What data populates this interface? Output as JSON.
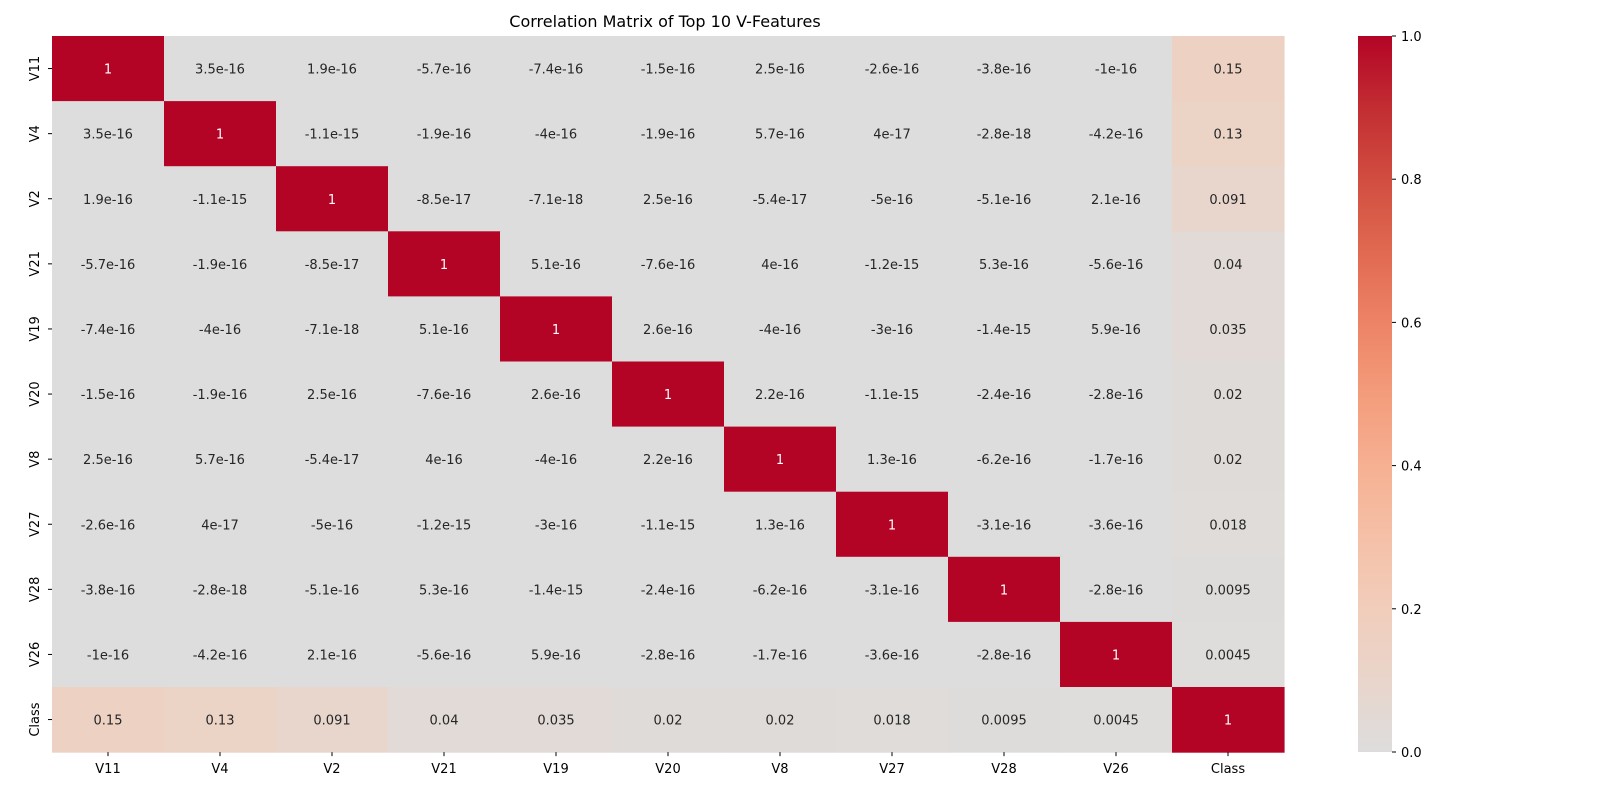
{
  "chart_data": {
    "type": "heatmap",
    "title": "Correlation Matrix of Top 10 V-Features",
    "xlabel": "",
    "ylabel": "",
    "rows": [
      "V11",
      "V4",
      "V2",
      "V21",
      "V19",
      "V20",
      "V8",
      "V27",
      "V28",
      "V26",
      "Class"
    ],
    "columns": [
      "V11",
      "V4",
      "V2",
      "V21",
      "V19",
      "V20",
      "V8",
      "V27",
      "V28",
      "V26",
      "Class"
    ],
    "values": [
      [
        1,
        3.5e-16,
        1.9e-16,
        -5.7e-16,
        -7.4e-16,
        -1.5e-16,
        2.5e-16,
        -2.6e-16,
        -3.8e-16,
        -1e-16,
        0.15
      ],
      [
        3.5e-16,
        1,
        -1.1e-15,
        -1.9e-16,
        -4e-16,
        -1.9e-16,
        5.7e-16,
        4e-17,
        -2.8e-18,
        -4.2e-16,
        0.13
      ],
      [
        1.9e-16,
        -1.1e-15,
        1,
        -8.5e-17,
        -7.1e-18,
        2.5e-16,
        -5.4e-17,
        -5e-16,
        -5.1e-16,
        2.1e-16,
        0.091
      ],
      [
        -5.7e-16,
        -1.9e-16,
        -8.5e-17,
        1,
        5.1e-16,
        -7.6e-16,
        4e-16,
        -1.2e-15,
        5.3e-16,
        -5.6e-16,
        0.04
      ],
      [
        -7.4e-16,
        -4e-16,
        -7.1e-18,
        5.1e-16,
        1,
        2.6e-16,
        -4e-16,
        -3e-16,
        -1.4e-15,
        5.9e-16,
        0.035
      ],
      [
        -1.5e-16,
        -1.9e-16,
        2.5e-16,
        -7.6e-16,
        2.6e-16,
        1,
        2.2e-16,
        -1.1e-15,
        -2.4e-16,
        -2.8e-16,
        0.02
      ],
      [
        2.5e-16,
        5.7e-16,
        -5.4e-17,
        4e-16,
        -4e-16,
        2.2e-16,
        1,
        1.3e-16,
        -6.2e-16,
        -1.7e-16,
        0.02
      ],
      [
        -2.6e-16,
        4e-17,
        -5e-16,
        -1.2e-15,
        -3e-16,
        -1.1e-15,
        1.3e-16,
        1,
        -3.1e-16,
        -3.6e-16,
        0.018
      ],
      [
        -3.8e-16,
        -2.8e-18,
        -5.1e-16,
        5.3e-16,
        -1.4e-15,
        -2.4e-16,
        -6.2e-16,
        -3.1e-16,
        1,
        -2.8e-16,
        0.0095
      ],
      [
        -1e-16,
        -4.2e-16,
        2.1e-16,
        -5.6e-16,
        5.9e-16,
        -2.8e-16,
        -1.7e-16,
        -3.6e-16,
        -2.8e-16,
        1,
        0.0045
      ],
      [
        0.15,
        0.13,
        0.091,
        0.04,
        0.035,
        0.02,
        0.02,
        0.018,
        0.0095,
        0.0045,
        1
      ]
    ],
    "annotations": [
      [
        "1",
        "3.5e-16",
        "1.9e-16",
        "-5.7e-16",
        "-7.4e-16",
        "-1.5e-16",
        "2.5e-16",
        "-2.6e-16",
        "-3.8e-16",
        "-1e-16",
        "0.15"
      ],
      [
        "3.5e-16",
        "1",
        "-1.1e-15",
        "-1.9e-16",
        "-4e-16",
        "-1.9e-16",
        "5.7e-16",
        "4e-17",
        "-2.8e-18",
        "-4.2e-16",
        "0.13"
      ],
      [
        "1.9e-16",
        "-1.1e-15",
        "1",
        "-8.5e-17",
        "-7.1e-18",
        "2.5e-16",
        "-5.4e-17",
        "-5e-16",
        "-5.1e-16",
        "2.1e-16",
        "0.091"
      ],
      [
        "-5.7e-16",
        "-1.9e-16",
        "-8.5e-17",
        "1",
        "5.1e-16",
        "-7.6e-16",
        "4e-16",
        "-1.2e-15",
        "5.3e-16",
        "-5.6e-16",
        "0.04"
      ],
      [
        "-7.4e-16",
        "-4e-16",
        "-7.1e-18",
        "5.1e-16",
        "1",
        "2.6e-16",
        "-4e-16",
        "-3e-16",
        "-1.4e-15",
        "5.9e-16",
        "0.035"
      ],
      [
        "-1.5e-16",
        "-1.9e-16",
        "2.5e-16",
        "-7.6e-16",
        "2.6e-16",
        "1",
        "2.2e-16",
        "-1.1e-15",
        "-2.4e-16",
        "-2.8e-16",
        "0.02"
      ],
      [
        "2.5e-16",
        "5.7e-16",
        "-5.4e-17",
        "4e-16",
        "-4e-16",
        "2.2e-16",
        "1",
        "1.3e-16",
        "-6.2e-16",
        "-1.7e-16",
        "0.02"
      ],
      [
        "-2.6e-16",
        "4e-17",
        "-5e-16",
        "-1.2e-15",
        "-3e-16",
        "-1.1e-15",
        "1.3e-16",
        "1",
        "-3.1e-16",
        "-3.6e-16",
        "0.018"
      ],
      [
        "-3.8e-16",
        "-2.8e-18",
        "-5.1e-16",
        "5.3e-16",
        "-1.4e-15",
        "-2.4e-16",
        "-6.2e-16",
        "-3.1e-16",
        "1",
        "-2.8e-16",
        "0.0095"
      ],
      [
        "-1e-16",
        "-4.2e-16",
        "2.1e-16",
        "-5.6e-16",
        "5.9e-16",
        "-2.8e-16",
        "-1.7e-16",
        "-3.6e-16",
        "-2.8e-16",
        "1",
        "0.0045"
      ],
      [
        "0.15",
        "0.13",
        "0.091",
        "0.04",
        "0.035",
        "0.02",
        "0.02",
        "0.018",
        "0.0095",
        "0.0045",
        "1"
      ]
    ],
    "colorbar": {
      "range": [
        0,
        1
      ],
      "ticks": [
        "0.0",
        "0.2",
        "0.4",
        "0.6",
        "0.8",
        "1.0"
      ],
      "colormap": "coolwarm",
      "center_color": "#dddddd",
      "max_color": "#b40426"
    },
    "grid": false,
    "legend": "colorbar-right"
  }
}
